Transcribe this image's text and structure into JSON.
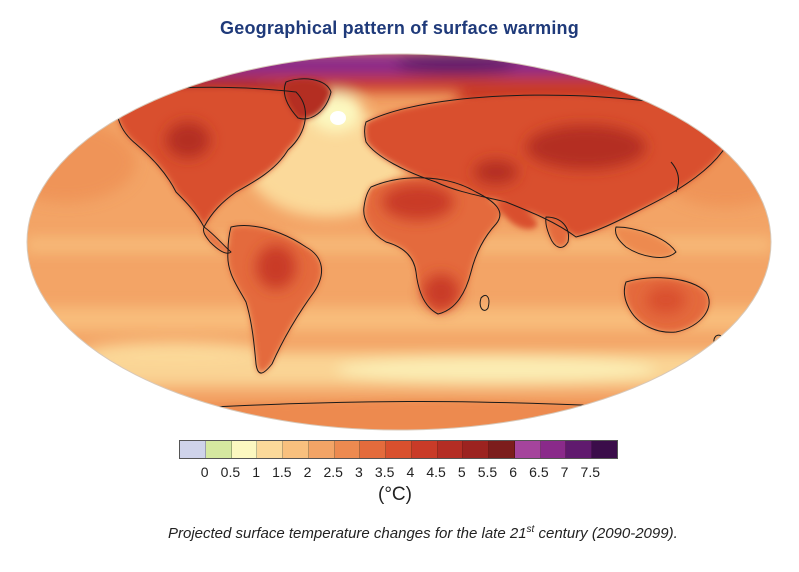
{
  "title": "Geographical pattern of surface warming",
  "legend": {
    "colors": [
      "#cfd3ea",
      "#d5e8a0",
      "#fcf8c0",
      "#fbd99a",
      "#f8c07e",
      "#f3a466",
      "#ed8a50",
      "#e46b3c",
      "#d9502e",
      "#c93b28",
      "#b42d24",
      "#9c2320",
      "#7c1d1c",
      "#a5449c",
      "#8a2a8a",
      "#601a6e",
      "#3b0d4a"
    ],
    "tick_labels": [
      "0",
      "0.5",
      "1",
      "1.5",
      "2",
      "2.5",
      "3",
      "3.5",
      "4",
      "4.5",
      "5",
      "5.5",
      "6",
      "6.5",
      "7",
      "7.5"
    ],
    "unit": "(°C)"
  },
  "caption": {
    "before": "Projected surface temperature changes for the late 21",
    "sup": "st",
    "after": " century (2090-2099)."
  }
}
